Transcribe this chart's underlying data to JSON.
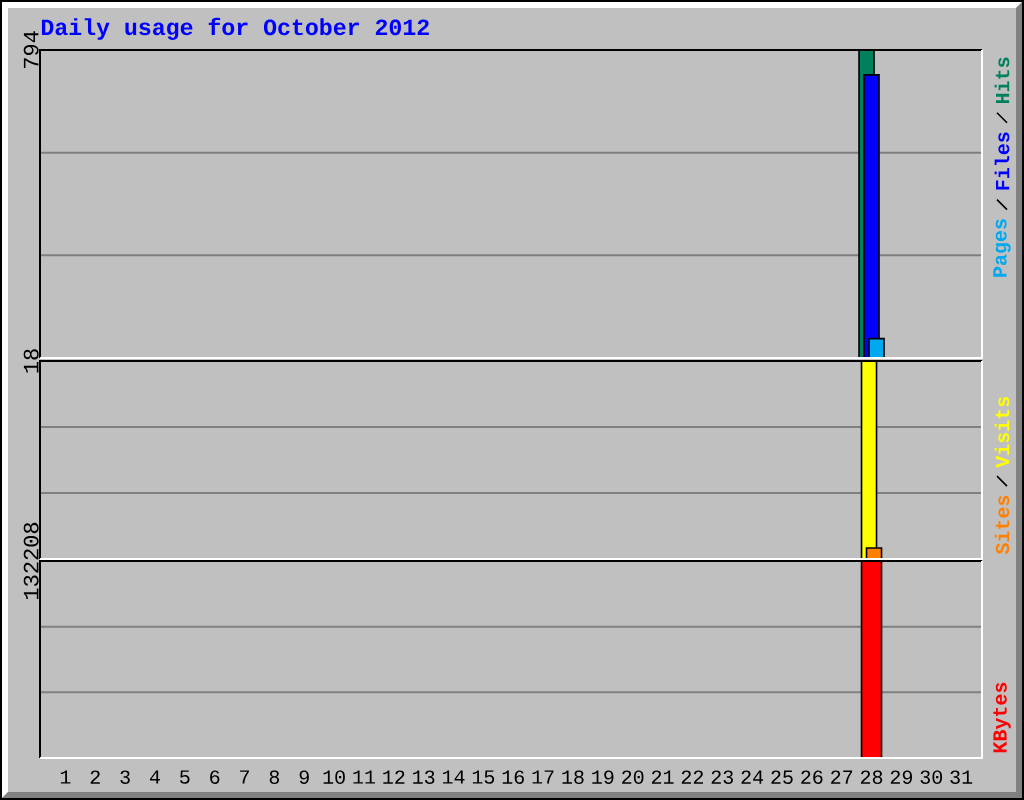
{
  "chart_data": [
    {
      "type": "bar",
      "title": "Daily usage for October 2012",
      "categories": [
        "1",
        "2",
        "3",
        "4",
        "5",
        "6",
        "7",
        "8",
        "9",
        "10",
        "11",
        "12",
        "13",
        "14",
        "15",
        "16",
        "17",
        "18",
        "19",
        "20",
        "21",
        "22",
        "23",
        "24",
        "25",
        "26",
        "27",
        "28",
        "29",
        "30",
        "31"
      ],
      "series": [
        {
          "name": "Hits",
          "color": "#00805c",
          "values": [
            null,
            null,
            null,
            null,
            null,
            null,
            null,
            null,
            null,
            null,
            null,
            null,
            null,
            null,
            null,
            null,
            null,
            null,
            null,
            null,
            null,
            null,
            null,
            null,
            null,
            null,
            null,
            794,
            null,
            null,
            null
          ]
        },
        {
          "name": "Files",
          "color": "#0000ff",
          "values": [
            null,
            null,
            null,
            null,
            null,
            null,
            null,
            null,
            null,
            null,
            null,
            null,
            null,
            null,
            null,
            null,
            null,
            null,
            null,
            null,
            null,
            null,
            null,
            null,
            null,
            null,
            null,
            730,
            null,
            null,
            null
          ]
        },
        {
          "name": "Pages",
          "color": "#00a8f0",
          "values": [
            null,
            null,
            null,
            null,
            null,
            null,
            null,
            null,
            null,
            null,
            null,
            null,
            null,
            null,
            null,
            null,
            null,
            null,
            null,
            null,
            null,
            null,
            null,
            null,
            null,
            null,
            null,
            50,
            null,
            null,
            null
          ]
        }
      ],
      "ylim": [
        0,
        794
      ],
      "yticks": [
        {
          "value": 265,
          "label": null
        },
        {
          "value": 529,
          "label": null
        },
        794
      ],
      "grid": "y",
      "legend": "right",
      "tick_labels": "y"
    },
    {
      "type": "bar",
      "categories": [
        "1",
        "2",
        "3",
        "4",
        "5",
        "6",
        "7",
        "8",
        "9",
        "10",
        "11",
        "12",
        "13",
        "14",
        "15",
        "16",
        "17",
        "18",
        "19",
        "20",
        "21",
        "22",
        "23",
        "24",
        "25",
        "26",
        "27",
        "28",
        "29",
        "30",
        "31"
      ],
      "series": [
        {
          "name": "Visits",
          "color": "#ffff00",
          "values": [
            null,
            null,
            null,
            null,
            null,
            null,
            null,
            null,
            null,
            null,
            null,
            null,
            null,
            null,
            null,
            null,
            null,
            null,
            null,
            null,
            null,
            null,
            null,
            null,
            null,
            null,
            null,
            18,
            null,
            null,
            null
          ]
        },
        {
          "name": "Sites",
          "color": "#ff8000",
          "values": [
            null,
            null,
            null,
            null,
            null,
            null,
            null,
            null,
            null,
            null,
            null,
            null,
            null,
            null,
            null,
            null,
            null,
            null,
            null,
            null,
            null,
            null,
            null,
            null,
            null,
            null,
            null,
            1,
            null,
            null,
            null
          ]
        }
      ],
      "ylim": [
        0,
        18
      ],
      "yticks": [
        {
          "value": 6,
          "label": null
        },
        {
          "value": 12,
          "label": null
        },
        18
      ],
      "grid": "y",
      "legend": "right",
      "tick_labels": "y"
    },
    {
      "type": "bar",
      "categories": [
        "1",
        "2",
        "3",
        "4",
        "5",
        "6",
        "7",
        "8",
        "9",
        "10",
        "11",
        "12",
        "13",
        "14",
        "15",
        "16",
        "17",
        "18",
        "19",
        "20",
        "21",
        "22",
        "23",
        "24",
        "25",
        "26",
        "27",
        "28",
        "29",
        "30",
        "31"
      ],
      "series": [
        {
          "name": "KBytes",
          "color": "#ff0000",
          "values": [
            null,
            null,
            null,
            null,
            null,
            null,
            null,
            null,
            null,
            null,
            null,
            null,
            null,
            null,
            null,
            null,
            null,
            null,
            null,
            null,
            null,
            null,
            null,
            null,
            null,
            null,
            null,
            132208,
            null,
            null,
            null
          ]
        }
      ],
      "ylim": [
        0,
        132208
      ],
      "yticks": [
        {
          "value": 44069,
          "label": null
        },
        {
          "value": 88139,
          "label": null
        },
        132208
      ],
      "grid": "y",
      "legend": "right"
    }
  ]
}
